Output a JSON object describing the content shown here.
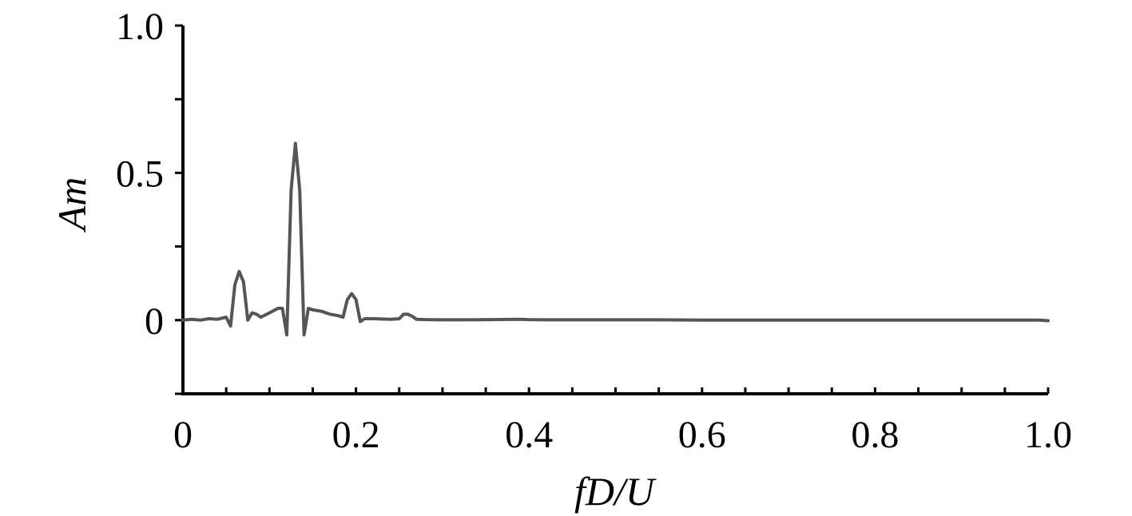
{
  "chart_data": {
    "type": "line",
    "title": "",
    "xlabel": "fD/U",
    "ylabel": "Am",
    "xlim": [
      0,
      1.0
    ],
    "ylim": [
      -0.25,
      1.0
    ],
    "x_ticks": [
      0,
      0.2,
      0.4,
      0.6,
      0.8,
      1.0
    ],
    "x_tick_labels": [
      "0",
      "0.2",
      "0.4",
      "0.6",
      "0.8",
      "1.0"
    ],
    "x_minor_step": 0.05,
    "y_ticks": [
      0,
      0.5,
      1.0
    ],
    "y_tick_labels": [
      "0",
      "0.5",
      "1.0"
    ],
    "y_minor_step": 0.25,
    "grid": false,
    "legend": "none",
    "line_color": "#555555",
    "axis_color": "#000000",
    "series": [
      {
        "x": [
          0,
          0.01,
          0.02,
          0.03,
          0.04,
          0.05,
          0.055,
          0.06,
          0.065,
          0.07,
          0.075,
          0.08,
          0.085,
          0.09,
          0.1,
          0.11,
          0.115,
          0.12,
          0.125,
          0.13,
          0.135,
          0.14,
          0.145,
          0.15,
          0.16,
          0.17,
          0.18,
          0.185,
          0.19,
          0.195,
          0.2,
          0.205,
          0.21,
          0.22,
          0.24,
          0.25,
          0.255,
          0.26,
          0.265,
          0.27,
          0.28,
          0.3,
          0.33,
          0.36,
          0.39,
          0.4,
          0.42,
          0.45,
          0.5,
          0.55,
          0.6,
          0.65,
          0.7,
          0.75,
          0.8,
          0.85,
          0.9,
          0.95,
          0.99,
          1.0
        ],
        "y": [
          0.0,
          0.003,
          0.0,
          0.005,
          0.003,
          0.01,
          -0.02,
          0.12,
          0.165,
          0.13,
          0.0,
          0.025,
          0.02,
          0.01,
          0.025,
          0.04,
          0.04,
          -0.05,
          0.44,
          0.6,
          0.44,
          -0.05,
          0.04,
          0.035,
          0.03,
          0.02,
          0.015,
          0.01,
          0.07,
          0.09,
          0.07,
          -0.005,
          0.005,
          0.005,
          0.003,
          0.005,
          0.02,
          0.02,
          0.013,
          0.003,
          0.002,
          0.001,
          0.001,
          0.002,
          0.003,
          0.002,
          0.001,
          0.001,
          0.001,
          0.001,
          0.0,
          0.0,
          0.0,
          0.0,
          0.0,
          0.0,
          0.0,
          0.0,
          0.0,
          -0.002
        ]
      }
    ]
  }
}
